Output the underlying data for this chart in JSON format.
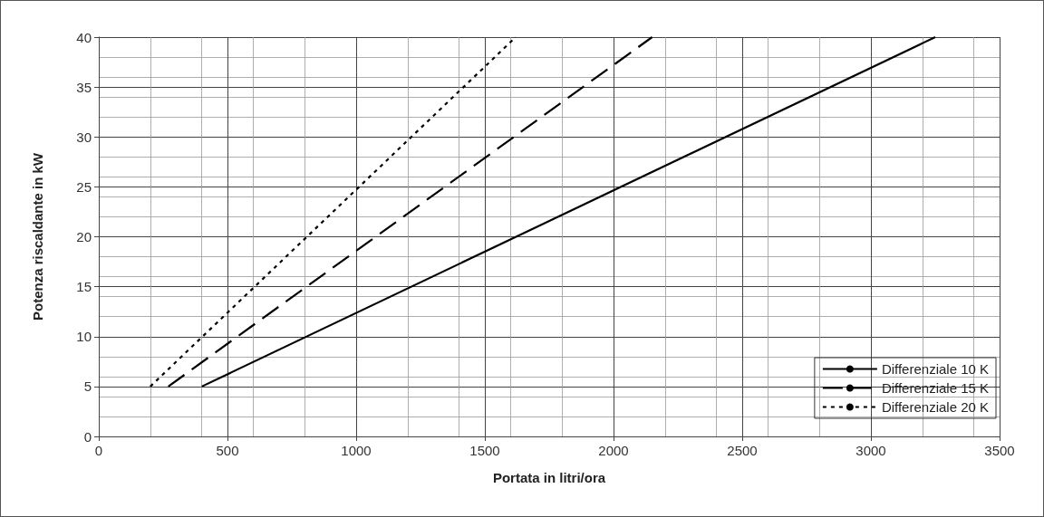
{
  "chart_data": {
    "type": "line",
    "xlabel": "Portata in litri/ora",
    "ylabel": "Potenza riscaldante in kW",
    "xlim": [
      0,
      3500
    ],
    "xticks": [
      0,
      500,
      1000,
      1500,
      2000,
      2500,
      3000,
      3500
    ],
    "ylim": [
      0,
      40
    ],
    "yticks": [
      0,
      5,
      10,
      15,
      20,
      25,
      30,
      35,
      40
    ],
    "grid": true,
    "legend": "bottom right",
    "marker": "none",
    "series": [
      {
        "name": "Differenziale 10 K",
        "color": "#000000",
        "line_style": "solid",
        "x": [
          400,
          3250
        ],
        "values": [
          5,
          40
        ]
      },
      {
        "name": "Differenziale 15 K",
        "color": "#000000",
        "line_style": "dashed",
        "x": [
          270,
          2150
        ],
        "values": [
          5,
          40
        ]
      },
      {
        "name": "Differenziale 20 K",
        "color": "#000000",
        "line_style": "dotted",
        "x": [
          200,
          1620
        ],
        "values": [
          5,
          40
        ]
      }
    ]
  }
}
